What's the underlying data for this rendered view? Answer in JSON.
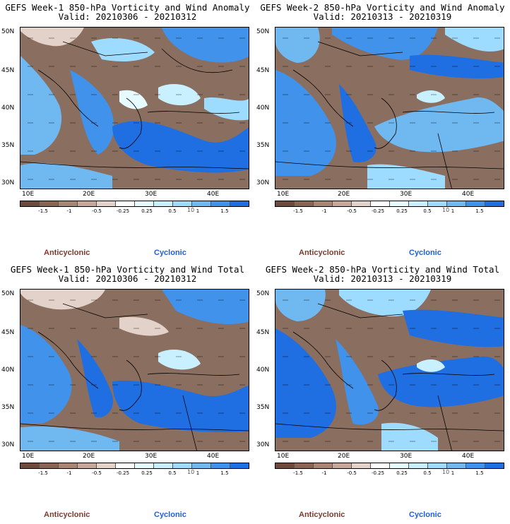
{
  "colors": {
    "anticyclonic": "#7a3b2e",
    "cyclonic": "#1e5fd8",
    "colorbar": [
      "#6e4a3c",
      "#8a6553",
      "#a98574",
      "#c6a89a",
      "#e3d2c9",
      "#ffffff",
      "#e6fbff",
      "#c8f0ff",
      "#9edcff",
      "#6fb8f0",
      "#4192ea",
      "#1f6fe2"
    ]
  },
  "colorbar_labels": [
    "-1.5",
    "-1",
    "-0.5",
    "-0.25",
    "0.25",
    "0.5",
    "1",
    "1.5"
  ],
  "colorbar_extra": "10",
  "lat_labels": [
    "50N",
    "45N",
    "40N",
    "35N",
    "30N"
  ],
  "lon_labels": [
    "10E",
    "20E",
    "30E",
    "40E"
  ],
  "legend": {
    "anticyclonic": "Anticyclonic",
    "cyclonic": "Cyclonic"
  },
  "panels": [
    {
      "title": "GEFS Week-1 850-hPa Vorticity and Wind Anomaly",
      "valid": "Valid: 20210306 - 20210312"
    },
    {
      "title": "GEFS Week-2 850-hPa Vorticity and Wind Anomaly",
      "valid": "Valid: 20210313 - 20210319"
    },
    {
      "title": "GEFS Week-1 850-hPa Vorticity and Wind Total",
      "valid": "Valid: 20210306 - 20210312"
    },
    {
      "title": "GEFS Week-2 850-hPa Vorticity and Wind Total",
      "valid": "Valid: 20210313 - 20210319"
    }
  ]
}
